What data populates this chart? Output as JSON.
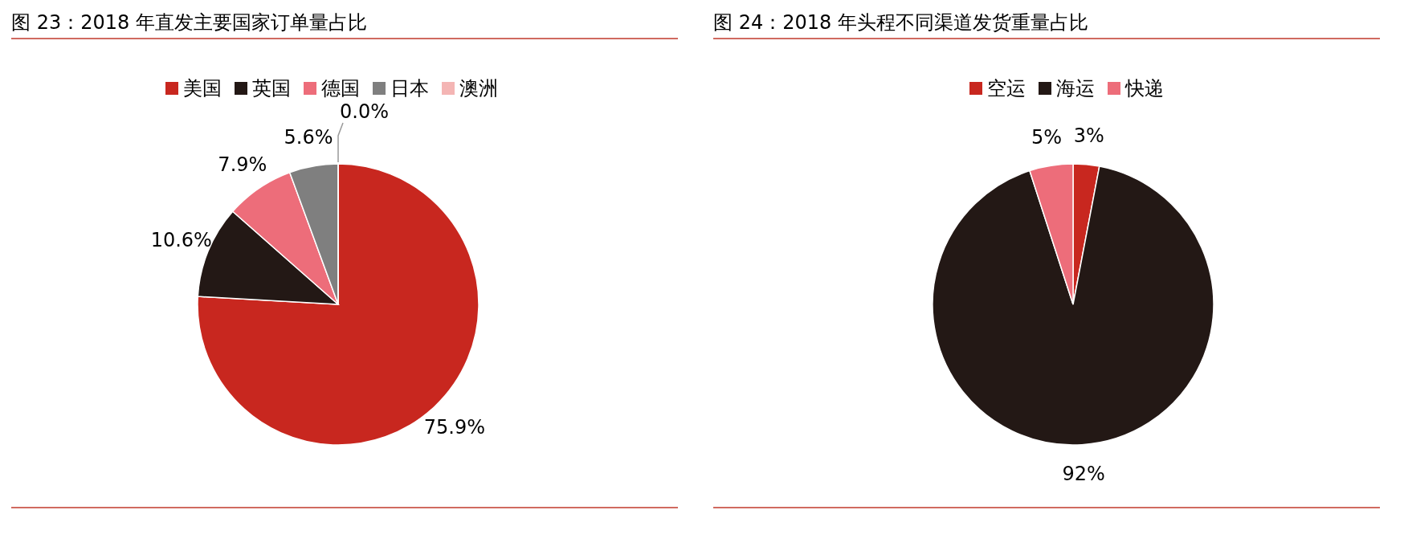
{
  "chart_data": [
    {
      "type": "pie",
      "title": "图 23：2018 年直发主要国家订单量占比",
      "categories": [
        "美国",
        "英国",
        "德国",
        "日本",
        "澳洲"
      ],
      "values": [
        75.9,
        10.6,
        7.9,
        5.6,
        0.0
      ],
      "value_labels": [
        "75.9%",
        "10.6%",
        "7.9%",
        "5.6%",
        "0.0%"
      ],
      "colors": [
        "#c8271f",
        "#231815",
        "#ed6d7a",
        "#7f7f7f",
        "#f4b5b4"
      ],
      "legend": "top"
    },
    {
      "type": "pie",
      "title": "图 24：2018 年头程不同渠道发货重量占比",
      "categories": [
        "空运",
        "海运",
        "快递"
      ],
      "values": [
        3,
        92,
        5
      ],
      "value_labels": [
        "3%",
        "92%",
        "5%"
      ],
      "colors": [
        "#c8271f",
        "#231815",
        "#ed6d7a"
      ],
      "legend": "top"
    }
  ]
}
